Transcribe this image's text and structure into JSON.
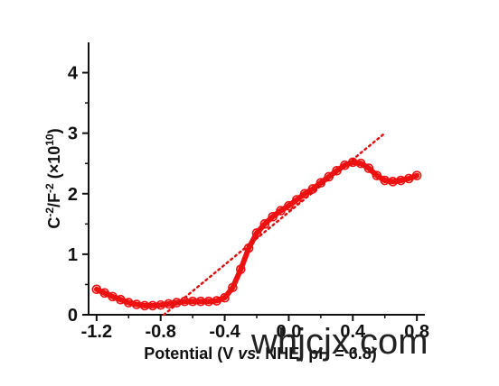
{
  "chart_data": {
    "type": "scatter",
    "title": "",
    "xlabel_parts": [
      "Potential (V ",
      "vs.",
      " NHE, pH = 6.8)"
    ],
    "ylabel_parts": [
      "C",
      "-2",
      "/F",
      "-2",
      " (×10",
      "10",
      ")"
    ],
    "xlim": [
      -1.25,
      0.85
    ],
    "ylim": [
      0,
      4.5
    ],
    "x_ticks": [
      -1.2,
      -0.8,
      -0.4,
      0.0,
      0.4,
      0.8
    ],
    "x_tick_labels": [
      "-1.2",
      "-0.8",
      "-0.4",
      "0.0",
      "0.4",
      "0.8"
    ],
    "y_ticks": [
      0,
      1,
      2,
      3,
      4
    ],
    "y_tick_labels": [
      "0",
      "1",
      "2",
      "3",
      "4"
    ],
    "grid": false,
    "legend": "none",
    "colors": {
      "data": "#ee1111",
      "fit": "#dd1111",
      "axes": "#111111"
    },
    "series": [
      {
        "style": "markers",
        "x": [
          -1.2,
          -1.15,
          -1.1,
          -1.05,
          -1.0,
          -0.95,
          -0.9,
          -0.85,
          -0.8,
          -0.75,
          -0.7,
          -0.65,
          -0.6,
          -0.55,
          -0.5,
          -0.45,
          -0.4,
          -0.35,
          -0.3,
          -0.25,
          -0.2,
          -0.15,
          -0.1,
          -0.05,
          0.0,
          0.05,
          0.1,
          0.15,
          0.2,
          0.25,
          0.3,
          0.35,
          0.4,
          0.45,
          0.5,
          0.55,
          0.6,
          0.65,
          0.7,
          0.75,
          0.8
        ],
        "y": [
          0.42,
          0.36,
          0.3,
          0.25,
          0.2,
          0.17,
          0.15,
          0.15,
          0.16,
          0.18,
          0.2,
          0.22,
          0.22,
          0.22,
          0.22,
          0.23,
          0.28,
          0.45,
          0.75,
          1.1,
          1.35,
          1.5,
          1.62,
          1.72,
          1.8,
          1.9,
          2.0,
          2.08,
          2.18,
          2.28,
          2.38,
          2.47,
          2.52,
          2.5,
          2.42,
          2.3,
          2.22,
          2.2,
          2.22,
          2.25,
          2.3
        ]
      },
      {
        "style": "dotted-line",
        "x": [
          -0.78,
          0.6
        ],
        "y": [
          0.0,
          3.0
        ]
      }
    ]
  },
  "watermark": "whjcjx.com"
}
